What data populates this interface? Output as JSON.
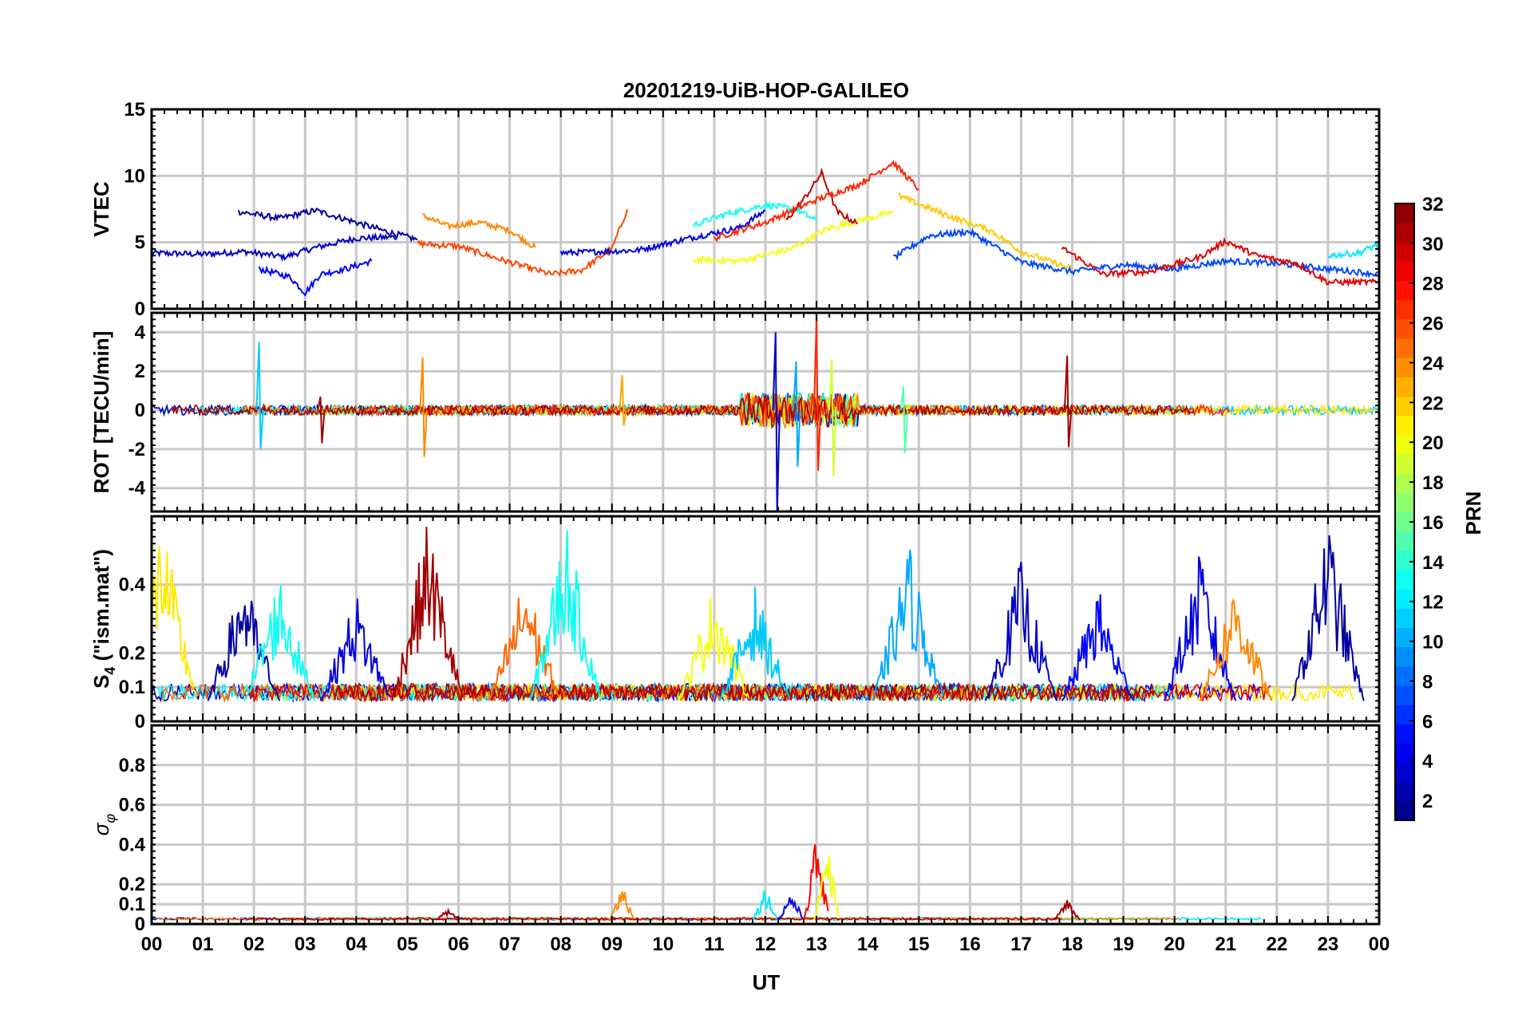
{
  "figure": {
    "title": "20201219-UiB-HOP-GALILEO",
    "xlabel": "UT"
  },
  "colorbar": {
    "label": "PRN",
    "range": [
      1,
      32
    ],
    "ticks": [
      "2",
      "4",
      "6",
      "8",
      "10",
      "12",
      "14",
      "16",
      "18",
      "20",
      "22",
      "24",
      "26",
      "28",
      "30",
      "32"
    ],
    "tick_values": [
      2,
      4,
      6,
      8,
      10,
      12,
      14,
      16,
      18,
      20,
      22,
      24,
      26,
      28,
      30,
      32
    ],
    "colormap": "jet"
  },
  "chart_data": [
    {
      "type": "line",
      "panel": "vtec",
      "title": "20201219-UiB-HOP-GALILEO",
      "ylabel": "VTEC",
      "xlim": [
        0,
        24
      ],
      "ylim": [
        0,
        15
      ],
      "yticks": [
        0,
        5,
        10,
        15
      ],
      "ytick_labels": [
        "0",
        "5",
        "10",
        "15"
      ],
      "x_ticks": [
        "00",
        "01",
        "02",
        "03",
        "04",
        "05",
        "06",
        "07",
        "08",
        "09",
        "10",
        "11",
        "12",
        "13",
        "14",
        "15",
        "16",
        "17",
        "18",
        "19",
        "20",
        "21",
        "22",
        "23",
        "00"
      ],
      "series": [
        {
          "name": "PRN 3",
          "prn": 3,
          "points": [
            [
              0.0,
              4.2
            ],
            [
              1.0,
              4.1
            ],
            [
              1.8,
              4.3
            ],
            [
              2.6,
              3.9
            ],
            [
              3.2,
              4.6
            ],
            [
              4.0,
              5.3
            ],
            [
              4.8,
              5.4
            ]
          ]
        },
        {
          "name": "PRN 2",
          "prn": 2,
          "points": [
            [
              1.7,
              7.3
            ],
            [
              2.5,
              6.8
            ],
            [
              3.2,
              7.4
            ],
            [
              4.0,
              6.5
            ],
            [
              4.6,
              5.8
            ],
            [
              5.2,
              5.2
            ]
          ]
        },
        {
          "name": "PRN 5",
          "prn": 5,
          "points": [
            [
              2.1,
              3.0
            ],
            [
              2.7,
              2.4
            ],
            [
              3.0,
              1.2
            ],
            [
              3.3,
              2.6
            ],
            [
              3.8,
              3.0
            ],
            [
              4.3,
              3.6
            ]
          ]
        },
        {
          "name": "PRN 24",
          "prn": 24,
          "points": [
            [
              5.3,
              7.0
            ],
            [
              5.8,
              6.2
            ],
            [
              6.4,
              6.5
            ],
            [
              7.0,
              5.9
            ],
            [
              7.5,
              4.6
            ]
          ]
        },
        {
          "name": "PRN 26",
          "prn": 26,
          "points": [
            [
              5.2,
              4.9
            ],
            [
              6.0,
              4.7
            ],
            [
              7.0,
              3.5
            ],
            [
              7.8,
              2.6
            ],
            [
              8.4,
              2.9
            ],
            [
              9.0,
              4.5
            ],
            [
              9.3,
              7.5
            ]
          ]
        },
        {
          "name": "PRN 4",
          "prn": 4,
          "points": [
            [
              8.0,
              4.2
            ],
            [
              9.5,
              4.4
            ],
            [
              10.5,
              5.3
            ],
            [
              11.5,
              6.1
            ],
            [
              12.0,
              7.4
            ]
          ]
        },
        {
          "name": "PRN 13",
          "prn": 13,
          "points": [
            [
              10.6,
              6.3
            ],
            [
              11.2,
              7.1
            ],
            [
              12.0,
              7.8
            ],
            [
              12.6,
              7.5
            ],
            [
              13.0,
              6.6
            ]
          ]
        },
        {
          "name": "PRN 20",
          "prn": 20,
          "points": [
            [
              10.6,
              3.7
            ],
            [
              11.5,
              3.6
            ],
            [
              12.5,
              4.5
            ],
            [
              13.2,
              6.0
            ],
            [
              14.0,
              6.8
            ],
            [
              14.5,
              7.3
            ]
          ]
        },
        {
          "name": "PRN 30",
          "prn": 30,
          "points": [
            [
              12.4,
              6.6
            ],
            [
              12.8,
              8.5
            ],
            [
              13.1,
              10.2
            ],
            [
              13.4,
              7.3
            ],
            [
              13.8,
              6.4
            ]
          ]
        },
        {
          "name": "PRN 27",
          "prn": 27,
          "points": [
            [
              11.0,
              5.3
            ],
            [
              12.0,
              6.5
            ],
            [
              13.0,
              8.2
            ],
            [
              13.8,
              9.3
            ],
            [
              14.5,
              11.0
            ],
            [
              15.0,
              9.0
            ]
          ]
        },
        {
          "name": "PRN 7",
          "prn": 7,
          "points": [
            [
              14.5,
              3.8
            ],
            [
              15.2,
              5.5
            ],
            [
              16.0,
              5.8
            ],
            [
              17.0,
              3.5
            ],
            [
              18.0,
              2.8
            ],
            [
              19.0,
              3.3
            ],
            [
              20.0,
              3.0
            ],
            [
              21.0,
              3.6
            ],
            [
              22.0,
              3.4
            ],
            [
              23.0,
              3.0
            ],
            [
              24.0,
              2.6
            ]
          ]
        },
        {
          "name": "PRN 22",
          "prn": 22,
          "points": [
            [
              14.6,
              8.5
            ],
            [
              15.5,
              7.1
            ],
            [
              16.4,
              5.9
            ],
            [
              17.0,
              4.3
            ],
            [
              18.0,
              3.0
            ]
          ]
        },
        {
          "name": "PRN 29",
          "prn": 29,
          "points": [
            [
              17.8,
              4.6
            ],
            [
              18.6,
              2.6
            ],
            [
              19.5,
              2.8
            ],
            [
              20.5,
              3.9
            ],
            [
              21.0,
              5.1
            ],
            [
              21.6,
              4.0
            ],
            [
              22.4,
              3.4
            ],
            [
              23.0,
              2.0
            ],
            [
              24.0,
              2.0
            ]
          ]
        },
        {
          "name": "PRN 12",
          "prn": 12,
          "points": [
            [
              23.0,
              4.0
            ],
            [
              23.6,
              4.2
            ],
            [
              24.0,
              4.9
            ]
          ]
        }
      ]
    },
    {
      "type": "line",
      "panel": "rot",
      "ylabel": "ROT [TECU/min]",
      "xlim": [
        0,
        24
      ],
      "ylim": [
        -5.2,
        5
      ],
      "yticks": [
        -4,
        -2,
        0,
        2,
        4
      ],
      "ytick_labels": [
        "-4",
        "-2",
        "0",
        "2",
        "4"
      ],
      "baseline": 0,
      "noise_amplitude": 0.25,
      "spikes": [
        {
          "x": 2.1,
          "min": -2.0,
          "max": 3.5,
          "prn": 11
        },
        {
          "x": 3.3,
          "min": -1.7,
          "max": 0.7,
          "prn": 31
        },
        {
          "x": 5.3,
          "min": -2.4,
          "max": 2.7,
          "prn": 24
        },
        {
          "x": 9.2,
          "min": -0.8,
          "max": 1.8,
          "prn": 23
        },
        {
          "x": 12.2,
          "min": -5.3,
          "max": 4.0,
          "prn": 3
        },
        {
          "x": 12.6,
          "min": -2.9,
          "max": 2.5,
          "prn": 10
        },
        {
          "x": 13.0,
          "min": -3.1,
          "max": 4.7,
          "prn": 27
        },
        {
          "x": 13.3,
          "min": -3.4,
          "max": 2.6,
          "prn": 19
        },
        {
          "x": 14.7,
          "min": -2.2,
          "max": 1.2,
          "prn": 15
        },
        {
          "x": 17.9,
          "min": -1.9,
          "max": 2.8,
          "prn": 31
        }
      ]
    },
    {
      "type": "line",
      "panel": "s4",
      "ylabel": "S4 (\"ism.mat\")",
      "xlim": [
        0,
        24
      ],
      "ylim": [
        0,
        0.6
      ],
      "yticks": [
        0,
        0.1,
        0.2,
        0.4
      ],
      "ytick_labels": [
        "0",
        "0.1",
        "0.2",
        "0.4"
      ],
      "peaks": [
        {
          "x": 0.2,
          "value": 0.6,
          "prn": 21
        },
        {
          "x": 1.8,
          "value": 0.44,
          "prn": 2
        },
        {
          "x": 2.5,
          "value": 0.44,
          "prn": 13
        },
        {
          "x": 4.0,
          "value": 0.38,
          "prn": 4
        },
        {
          "x": 5.4,
          "value": 0.6,
          "prn": 31
        },
        {
          "x": 7.3,
          "value": 0.44,
          "prn": 25
        },
        {
          "x": 8.1,
          "value": 0.6,
          "prn": 13
        },
        {
          "x": 11.0,
          "value": 0.41,
          "prn": 20
        },
        {
          "x": 11.8,
          "value": 0.4,
          "prn": 11
        },
        {
          "x": 14.8,
          "value": 0.53,
          "prn": 10
        },
        {
          "x": 17.0,
          "value": 0.48,
          "prn": 3
        },
        {
          "x": 18.5,
          "value": 0.4,
          "prn": 5
        },
        {
          "x": 20.5,
          "value": 0.5,
          "prn": 4
        },
        {
          "x": 21.2,
          "value": 0.42,
          "prn": 24
        },
        {
          "x": 23.0,
          "value": 0.6,
          "prn": 2
        }
      ],
      "baseline": 0.06
    },
    {
      "type": "line",
      "panel": "sigma_phi",
      "ylabel": "σφ",
      "xlim": [
        0,
        24
      ],
      "ylim": [
        0,
        1
      ],
      "yticks": [
        0,
        0.1,
        0.2,
        0.4,
        0.6,
        0.8
      ],
      "ytick_labels": [
        "0",
        "0.1",
        "0.2",
        "0.4",
        "0.6",
        "0.8"
      ],
      "baseline": 0.02,
      "peaks": [
        {
          "x": 5.8,
          "value": 0.08,
          "prn": 31
        },
        {
          "x": 9.2,
          "value": 0.22,
          "prn": 24
        },
        {
          "x": 12.0,
          "value": 0.2,
          "prn": 12
        },
        {
          "x": 12.5,
          "value": 0.18,
          "prn": 4
        },
        {
          "x": 13.0,
          "value": 0.47,
          "prn": 28
        },
        {
          "x": 13.2,
          "value": 0.48,
          "prn": 20
        },
        {
          "x": 17.9,
          "value": 0.13,
          "prn": 31
        }
      ]
    }
  ]
}
